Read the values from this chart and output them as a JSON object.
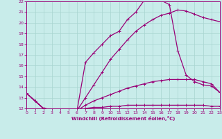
{
  "xlabel": "Windchill (Refroidissement éolien,°C)",
  "background_color": "#c8ecea",
  "grid_color": "#a8d4d0",
  "line_color": "#990077",
  "xlim": [
    0,
    23
  ],
  "ylim": [
    12,
    22
  ],
  "xtick_labels": [
    "0",
    "1",
    "2",
    "3",
    "4",
    "5",
    "6",
    "7",
    "8",
    "9",
    "10",
    "11",
    "12",
    "13",
    "14",
    "15",
    "16",
    "17",
    "18",
    "19",
    "20",
    "21",
    "22",
    "23"
  ],
  "ytick_labels": [
    "12",
    "13",
    "14",
    "15",
    "16",
    "17",
    "18",
    "19",
    "20",
    "21",
    "22"
  ],
  "xticks": [
    0,
    1,
    2,
    3,
    4,
    5,
    6,
    7,
    8,
    9,
    10,
    11,
    12,
    13,
    14,
    15,
    16,
    17,
    18,
    19,
    20,
    21,
    22,
    23
  ],
  "yticks": [
    12,
    13,
    14,
    15,
    16,
    17,
    18,
    19,
    20,
    21,
    22
  ],
  "curve3_x": [
    0,
    1,
    2,
    3,
    4,
    5,
    6,
    7,
    8,
    9,
    10,
    11,
    12,
    13,
    14,
    15,
    16,
    17,
    18,
    19,
    20,
    21,
    22,
    23
  ],
  "curve3_y": [
    13.4,
    12.7,
    12.0,
    11.9,
    11.8,
    11.8,
    11.8,
    13.0,
    14.2,
    15.4,
    16.6,
    17.5,
    18.4,
    19.2,
    19.8,
    20.3,
    20.7,
    20.9,
    21.2,
    21.1,
    20.8,
    20.5,
    20.3,
    20.1
  ],
  "curve2_x": [
    0,
    1,
    2,
    3,
    4,
    5,
    6,
    7,
    8,
    9,
    10,
    11,
    12,
    13,
    14,
    15,
    16,
    17,
    18,
    19,
    20,
    21,
    22,
    23
  ],
  "curve2_y": [
    13.4,
    12.7,
    12.0,
    11.9,
    11.8,
    11.8,
    11.8,
    12.3,
    12.7,
    13.0,
    13.3,
    13.6,
    13.9,
    14.1,
    14.3,
    14.5,
    14.6,
    14.7,
    14.7,
    14.7,
    14.7,
    14.5,
    14.3,
    13.5
  ],
  "curve1_x": [
    0,
    1,
    2,
    3,
    4,
    5,
    6,
    7,
    8,
    9,
    10,
    11,
    12,
    13,
    14,
    15,
    16,
    17,
    18,
    19,
    20,
    21,
    22,
    23
  ],
  "curve1_y": [
    13.4,
    12.7,
    12.0,
    11.9,
    11.8,
    11.8,
    11.8,
    12.0,
    12.1,
    12.1,
    12.2,
    12.2,
    12.3,
    12.3,
    12.3,
    12.3,
    12.3,
    12.3,
    12.3,
    12.3,
    12.3,
    12.3,
    12.2,
    12.2
  ],
  "curve_big_x": [
    0,
    1,
    2,
    3,
    4,
    5,
    6,
    7,
    8,
    9,
    10,
    11,
    12,
    13,
    14,
    15,
    16,
    17,
    18,
    19,
    20,
    21,
    22,
    23
  ],
  "curve_big_y": [
    13.4,
    12.7,
    12.0,
    11.9,
    11.8,
    11.8,
    11.8,
    16.3,
    17.2,
    18.0,
    18.8,
    19.2,
    20.3,
    21.0,
    22.1,
    22.1,
    22.1,
    21.7,
    17.4,
    15.1,
    14.5,
    14.2,
    14.1,
    13.5
  ],
  "marker": "+",
  "markersize": 3,
  "linewidth": 0.9
}
